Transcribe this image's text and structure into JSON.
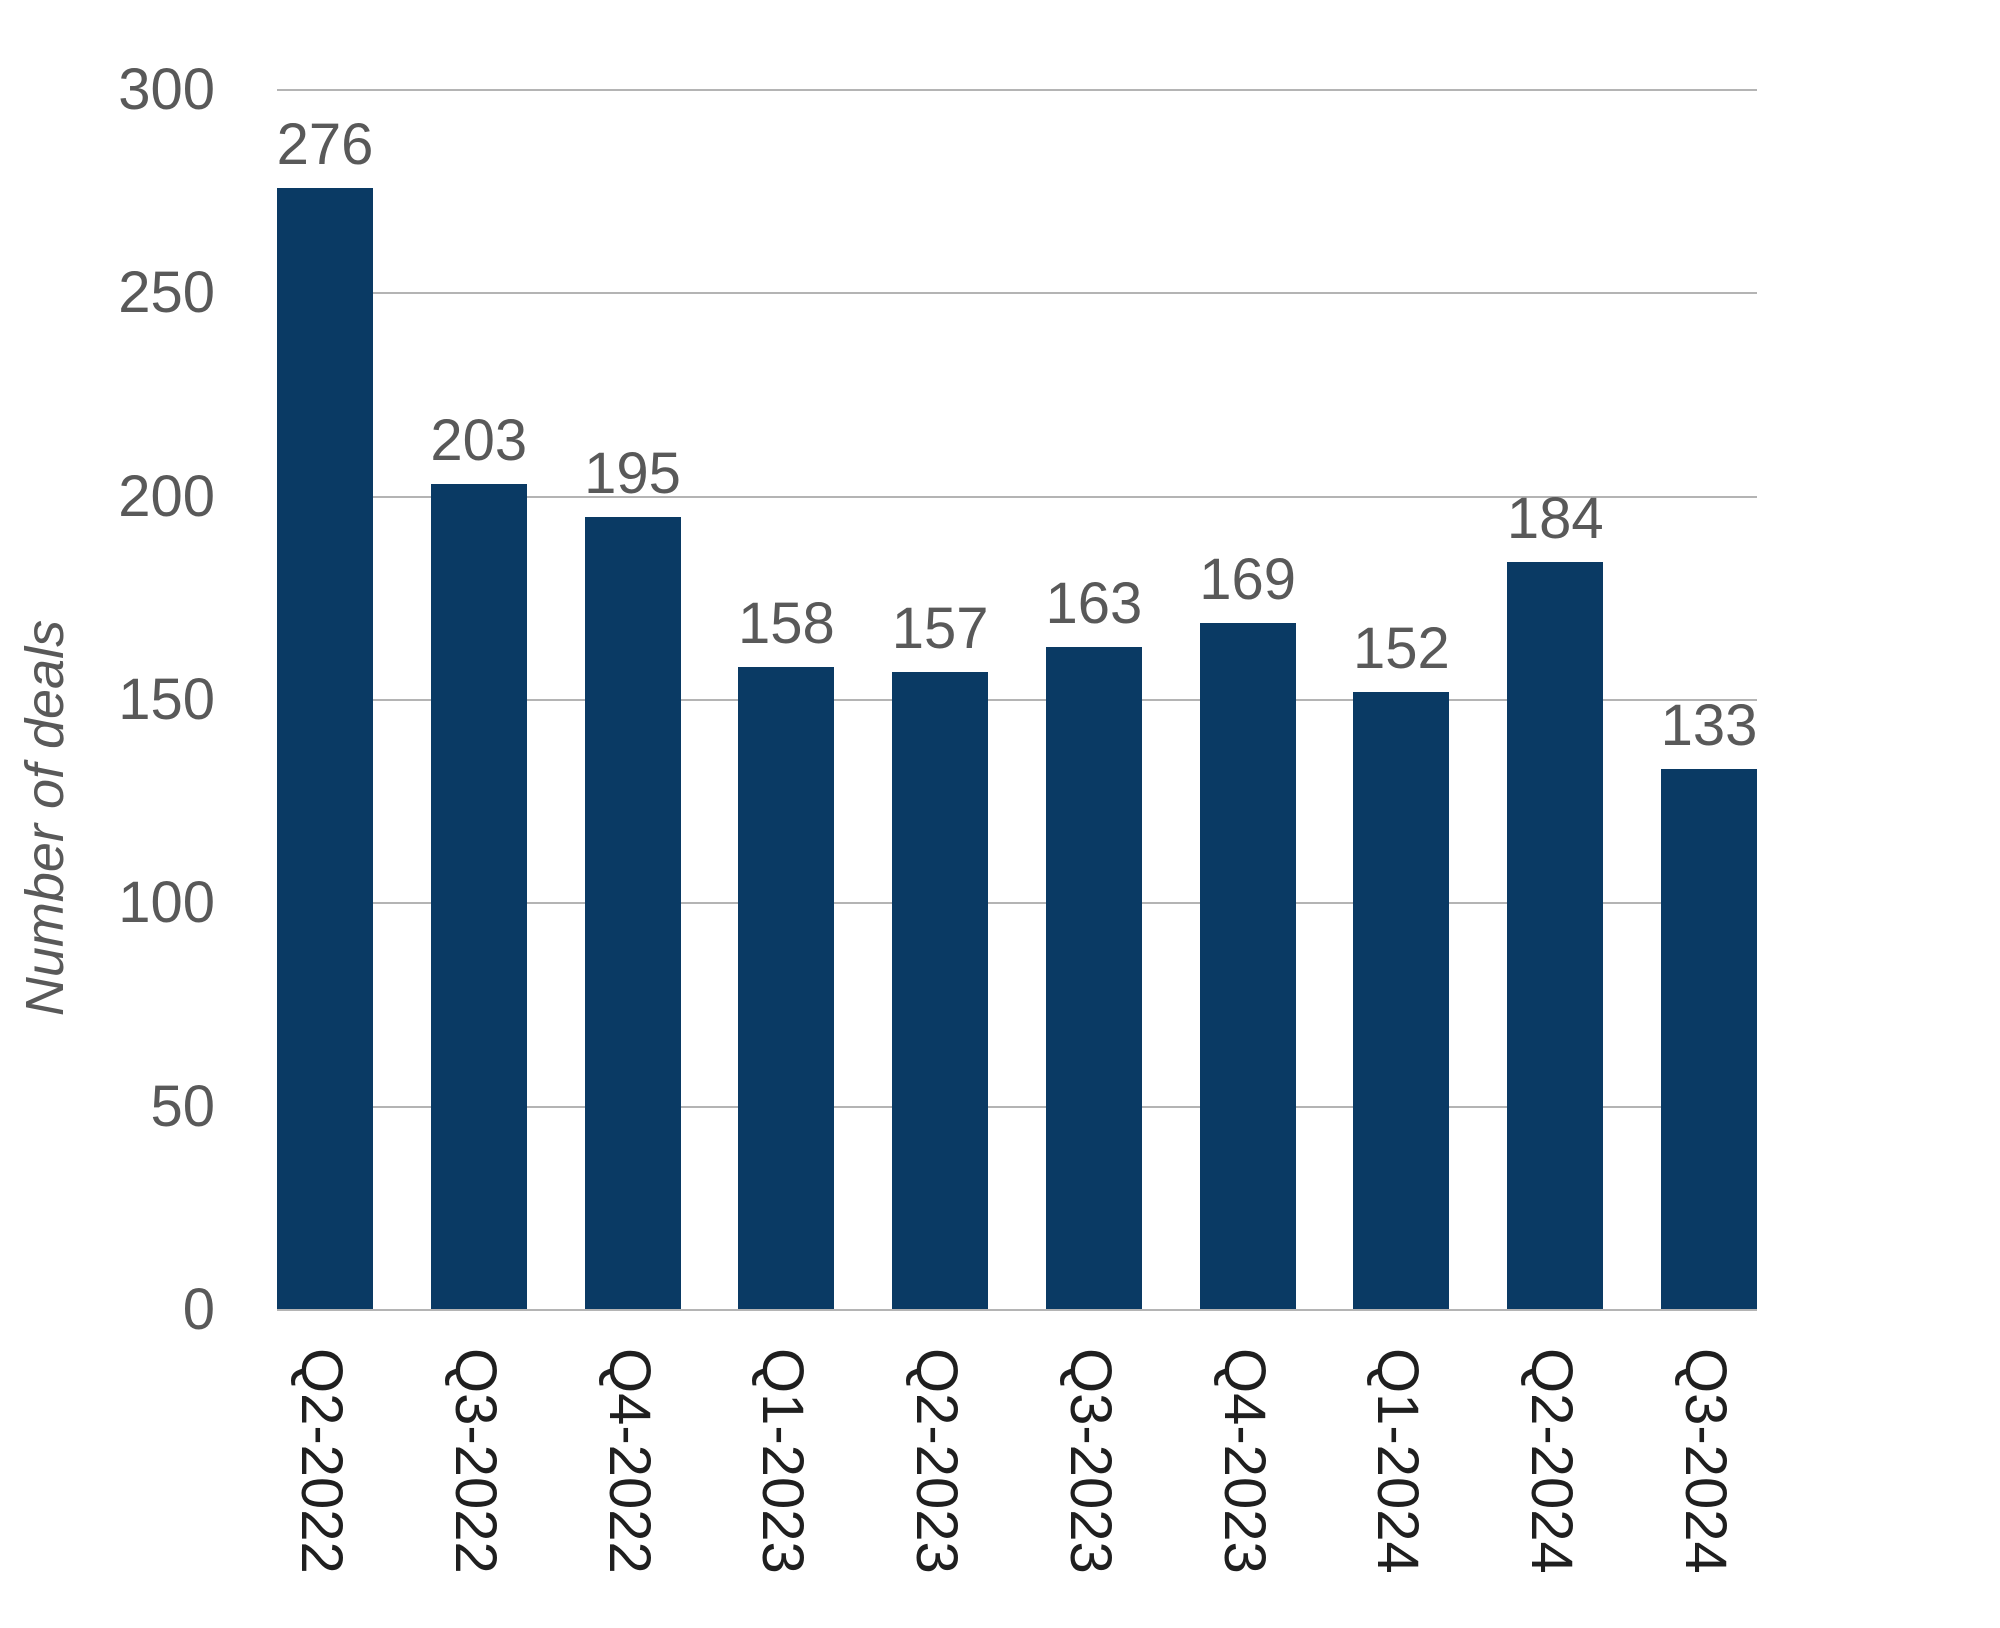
{
  "chart_data": {
    "type": "bar",
    "title": "",
    "xlabel": "",
    "ylabel": "Number of deals",
    "categories": [
      "Q2-2022",
      "Q3-2022",
      "Q4-2022",
      "Q1-2023",
      "Q2-2023",
      "Q3-2023",
      "Q4-2023",
      "Q1-2024",
      "Q2-2024",
      "Q3-2024"
    ],
    "values": [
      276,
      203,
      195,
      158,
      157,
      163,
      169,
      152,
      184,
      133
    ],
    "ylim": [
      0,
      300
    ],
    "yticks": [
      0,
      50,
      100,
      150,
      200,
      250,
      300
    ],
    "grid": "horizontal",
    "legend": "none",
    "value_labels_shown": true,
    "colors": {
      "bar": "#0a3a64",
      "gridline": "#b4b4b4",
      "axis_line": "#b4b4b4",
      "y_tick_label": "#595959",
      "value_label": "#595959",
      "x_tick_label": "#1f1f1f",
      "y_axis_title": "#595959",
      "background": "#ffffff"
    }
  }
}
